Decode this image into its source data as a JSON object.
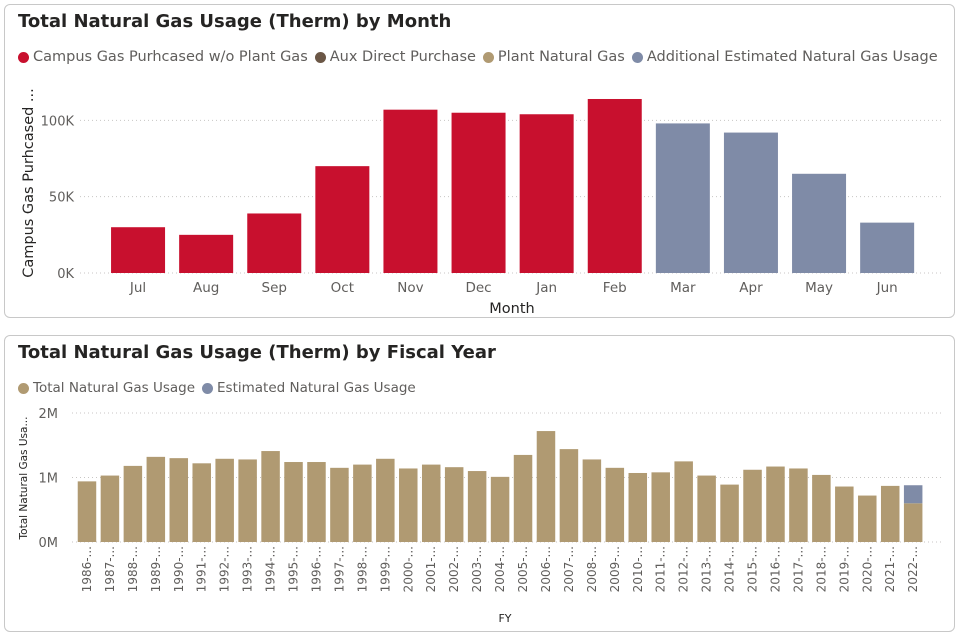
{
  "monthly_panel": {
    "title": "Total Natural Gas Usage (Therm) by Month",
    "legend": [
      {
        "label": "Campus Gas Purhcased w/o Plant Gas",
        "color": "#c8102e"
      },
      {
        "label": "Aux Direct Purchase",
        "color": "#6b5746"
      },
      {
        "label": "Plant Natural Gas",
        "color": "#b09a72"
      },
      {
        "label": "Additional Estimated Natural Gas Usage",
        "color": "#7f8ba7"
      }
    ]
  },
  "fiscal_panel": {
    "title": "Total Natural Gas Usage (Therm) by Fiscal Year",
    "legend": [
      {
        "label": "Total Natural Gas Usage",
        "color": "#b09a72"
      },
      {
        "label": "Estimated Natural Gas Usage",
        "color": "#7f8ba7"
      }
    ]
  },
  "chart_data": [
    {
      "type": "bar",
      "title": "Total Natural Gas Usage (Therm) by Month",
      "xlabel": "Month",
      "ylabel": "Campus Gas Purhcased ...",
      "ylim": [
        0,
        120000
      ],
      "yticks": [
        0,
        50000,
        100000
      ],
      "ytick_labels": [
        "0K",
        "50K",
        "100K"
      ],
      "grid": true,
      "legend_position": "top-left",
      "categories": [
        "Jul",
        "Aug",
        "Sep",
        "Oct",
        "Nov",
        "Dec",
        "Jan",
        "Feb",
        "Mar",
        "Apr",
        "May",
        "Jun"
      ],
      "series": [
        {
          "name": "Campus Gas Purhcased w/o Plant Gas",
          "color": "#c8102e",
          "values": [
            30000,
            25000,
            39000,
            70000,
            107000,
            105000,
            104000,
            114000,
            0,
            0,
            0,
            0
          ]
        },
        {
          "name": "Aux Direct Purchase",
          "color": "#6b5746",
          "values": [
            0,
            0,
            0,
            0,
            0,
            0,
            0,
            0,
            0,
            0,
            0,
            0
          ]
        },
        {
          "name": "Plant Natural Gas",
          "color": "#b09a72",
          "values": [
            0,
            0,
            0,
            0,
            0,
            0,
            0,
            0,
            0,
            0,
            0,
            0
          ]
        },
        {
          "name": "Additional Estimated Natural Gas Usage",
          "color": "#7f8ba7",
          "values": [
            0,
            0,
            0,
            0,
            0,
            0,
            0,
            0,
            98000,
            92000,
            65000,
            33000
          ]
        }
      ]
    },
    {
      "type": "bar",
      "stacked": true,
      "title": "Total Natural Gas Usage (Therm) by Fiscal Year",
      "xlabel": "FY",
      "ylabel": "Total Natural Gas Usa...",
      "ylim": [
        0,
        2000000
      ],
      "yticks": [
        0,
        1000000,
        2000000
      ],
      "ytick_labels": [
        "0M",
        "1M",
        "2M"
      ],
      "grid": true,
      "legend_position": "top-left",
      "categories": [
        "1986-...",
        "1987-...",
        "1988-...",
        "1989-...",
        "1990-...",
        "1991-...",
        "1992-...",
        "1993-...",
        "1994-...",
        "1995-...",
        "1996-...",
        "1997-...",
        "1998-...",
        "1999-...",
        "2000-...",
        "2001-...",
        "2002-...",
        "2003-...",
        "2004-...",
        "2005-...",
        "2006-...",
        "2007-...",
        "2008-...",
        "2009-...",
        "2010-...",
        "2011-...",
        "2012-...",
        "2013-...",
        "2014-...",
        "2015-...",
        "2016-...",
        "2017-...",
        "2018-...",
        "2019-...",
        "2020-...",
        "2021-...",
        "2022-..."
      ],
      "series": [
        {
          "name": "Total Natural Gas Usage",
          "color": "#b09a72",
          "values": [
            940000,
            1030000,
            1180000,
            1320000,
            1300000,
            1220000,
            1290000,
            1280000,
            1410000,
            1240000,
            1240000,
            1150000,
            1200000,
            1290000,
            1140000,
            1200000,
            1160000,
            1100000,
            1010000,
            1350000,
            1720000,
            1440000,
            1280000,
            1150000,
            1070000,
            1080000,
            1250000,
            1030000,
            890000,
            1120000,
            1170000,
            1140000,
            1040000,
            860000,
            720000,
            870000,
            600000
          ]
        },
        {
          "name": "Estimated Natural Gas Usage",
          "color": "#7f8ba7",
          "values": [
            0,
            0,
            0,
            0,
            0,
            0,
            0,
            0,
            0,
            0,
            0,
            0,
            0,
            0,
            0,
            0,
            0,
            0,
            0,
            0,
            0,
            0,
            0,
            0,
            0,
            0,
            0,
            0,
            0,
            0,
            0,
            0,
            0,
            0,
            0,
            0,
            280000
          ]
        }
      ]
    }
  ]
}
